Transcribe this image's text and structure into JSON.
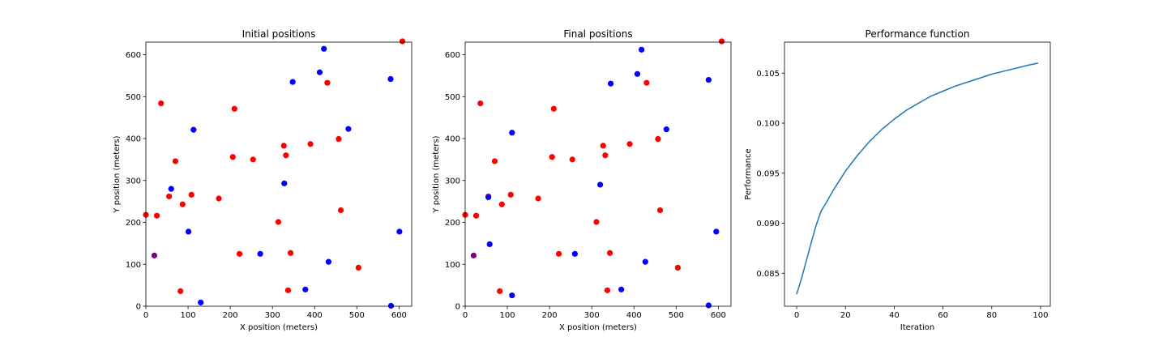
{
  "chart_data": [
    {
      "type": "scatter",
      "title": "Initial positions",
      "xlabel": "X position (meters)",
      "ylabel": "Y position (meters)",
      "xlim": [
        0,
        630
      ],
      "ylim": [
        0,
        630
      ],
      "xticks": [
        0,
        100,
        200,
        300,
        400,
        500,
        600
      ],
      "yticks": [
        0,
        100,
        200,
        300,
        400,
        500,
        600
      ],
      "colors": {
        "red": "#ff0000",
        "blue": "#0000ff",
        "purple": "#800080"
      },
      "series": [
        {
          "color": "red",
          "points": [
            [
              0,
              218
            ],
            [
              26,
              216
            ],
            [
              36,
              484
            ],
            [
              55,
              262
            ],
            [
              70,
              346
            ],
            [
              87,
              243
            ],
            [
              108,
              266
            ],
            [
              173,
              257
            ],
            [
              206,
              356
            ],
            [
              210,
              471
            ],
            [
              222,
              125
            ],
            [
              254,
              350
            ],
            [
              314,
              201
            ],
            [
              327,
              383
            ],
            [
              332,
              360
            ],
            [
              337,
              38
            ],
            [
              343,
              127
            ],
            [
              390,
              387
            ],
            [
              430,
              533
            ],
            [
              457,
              399
            ],
            [
              462,
              229
            ],
            [
              504,
              92
            ],
            [
              608,
              632
            ],
            [
              82,
              36
            ]
          ]
        },
        {
          "color": "blue",
          "points": [
            [
              60,
              280
            ],
            [
              101,
              178
            ],
            [
              113,
              421
            ],
            [
              130,
              9
            ],
            [
              271,
              125
            ],
            [
              328,
              293
            ],
            [
              348,
              535
            ],
            [
              378,
              40
            ],
            [
              412,
              558
            ],
            [
              422,
              614
            ],
            [
              433,
              106
            ],
            [
              480,
              423
            ],
            [
              580,
              542
            ],
            [
              581,
              1
            ],
            [
              601,
              178
            ]
          ]
        },
        {
          "color": "purple",
          "points": [
            [
              20,
              121
            ]
          ]
        }
      ]
    },
    {
      "type": "scatter",
      "title": "Final positions",
      "xlabel": "X position (meters)",
      "ylabel": "Y position (meters)",
      "xlim": [
        0,
        630
      ],
      "ylim": [
        0,
        630
      ],
      "xticks": [
        0,
        100,
        200,
        300,
        400,
        500,
        600
      ],
      "yticks": [
        0,
        100,
        200,
        300,
        400,
        500,
        600
      ],
      "colors": {
        "red": "#ff0000",
        "blue": "#0000ff",
        "purple": "#800080"
      },
      "series": [
        {
          "color": "red",
          "points": [
            [
              0,
              218
            ],
            [
              26,
              216
            ],
            [
              36,
              484
            ],
            [
              55,
              262
            ],
            [
              70,
              346
            ],
            [
              87,
              243
            ],
            [
              108,
              266
            ],
            [
              173,
              257
            ],
            [
              206,
              356
            ],
            [
              210,
              471
            ],
            [
              222,
              125
            ],
            [
              254,
              350
            ],
            [
              311,
              201
            ],
            [
              327,
              383
            ],
            [
              332,
              360
            ],
            [
              337,
              38
            ],
            [
              343,
              127
            ],
            [
              390,
              387
            ],
            [
              430,
              533
            ],
            [
              457,
              399
            ],
            [
              462,
              229
            ],
            [
              504,
              92
            ],
            [
              608,
              632
            ],
            [
              82,
              36
            ]
          ]
        },
        {
          "color": "blue",
          "points": [
            [
              55,
              260
            ],
            [
              58,
              148
            ],
            [
              111,
              414
            ],
            [
              111,
              26
            ],
            [
              260,
              125
            ],
            [
              320,
              290
            ],
            [
              345,
              531
            ],
            [
              370,
              40
            ],
            [
              408,
              554
            ],
            [
              418,
              612
            ],
            [
              427,
              106
            ],
            [
              477,
              422
            ],
            [
              577,
              540
            ],
            [
              577,
              2
            ],
            [
              595,
              178
            ]
          ]
        },
        {
          "color": "purple",
          "points": [
            [
              20,
              121
            ]
          ]
        }
      ]
    },
    {
      "type": "line",
      "title": "Performance function",
      "xlabel": "Iteration",
      "ylabel": "Performance",
      "xlim": [
        -5,
        104
      ],
      "ylim": [
        0.0817,
        0.1081
      ],
      "xticks": [
        0,
        20,
        40,
        60,
        80,
        100
      ],
      "yticks": [
        0.085,
        0.09,
        0.095,
        0.1,
        0.105
      ],
      "ytick_labels": [
        "0.085",
        "0.090",
        "0.095",
        "0.100",
        "0.105"
      ],
      "color": "#1f77b4",
      "series": [
        {
          "x": [
            0,
            2,
            4,
            6,
            8,
            10,
            12,
            15,
            20,
            25,
            30,
            35,
            40,
            45,
            50,
            55,
            60,
            65,
            70,
            75,
            80,
            85,
            90,
            95,
            99
          ],
          "y": [
            0.0829,
            0.0845,
            0.0863,
            0.0881,
            0.0898,
            0.0912,
            0.092,
            0.0933,
            0.0952,
            0.0968,
            0.0982,
            0.0994,
            0.1004,
            0.1013,
            0.102,
            0.1027,
            0.1032,
            0.1037,
            0.1041,
            0.1045,
            0.1049,
            0.1052,
            0.1055,
            0.1058,
            0.106
          ]
        }
      ]
    }
  ]
}
